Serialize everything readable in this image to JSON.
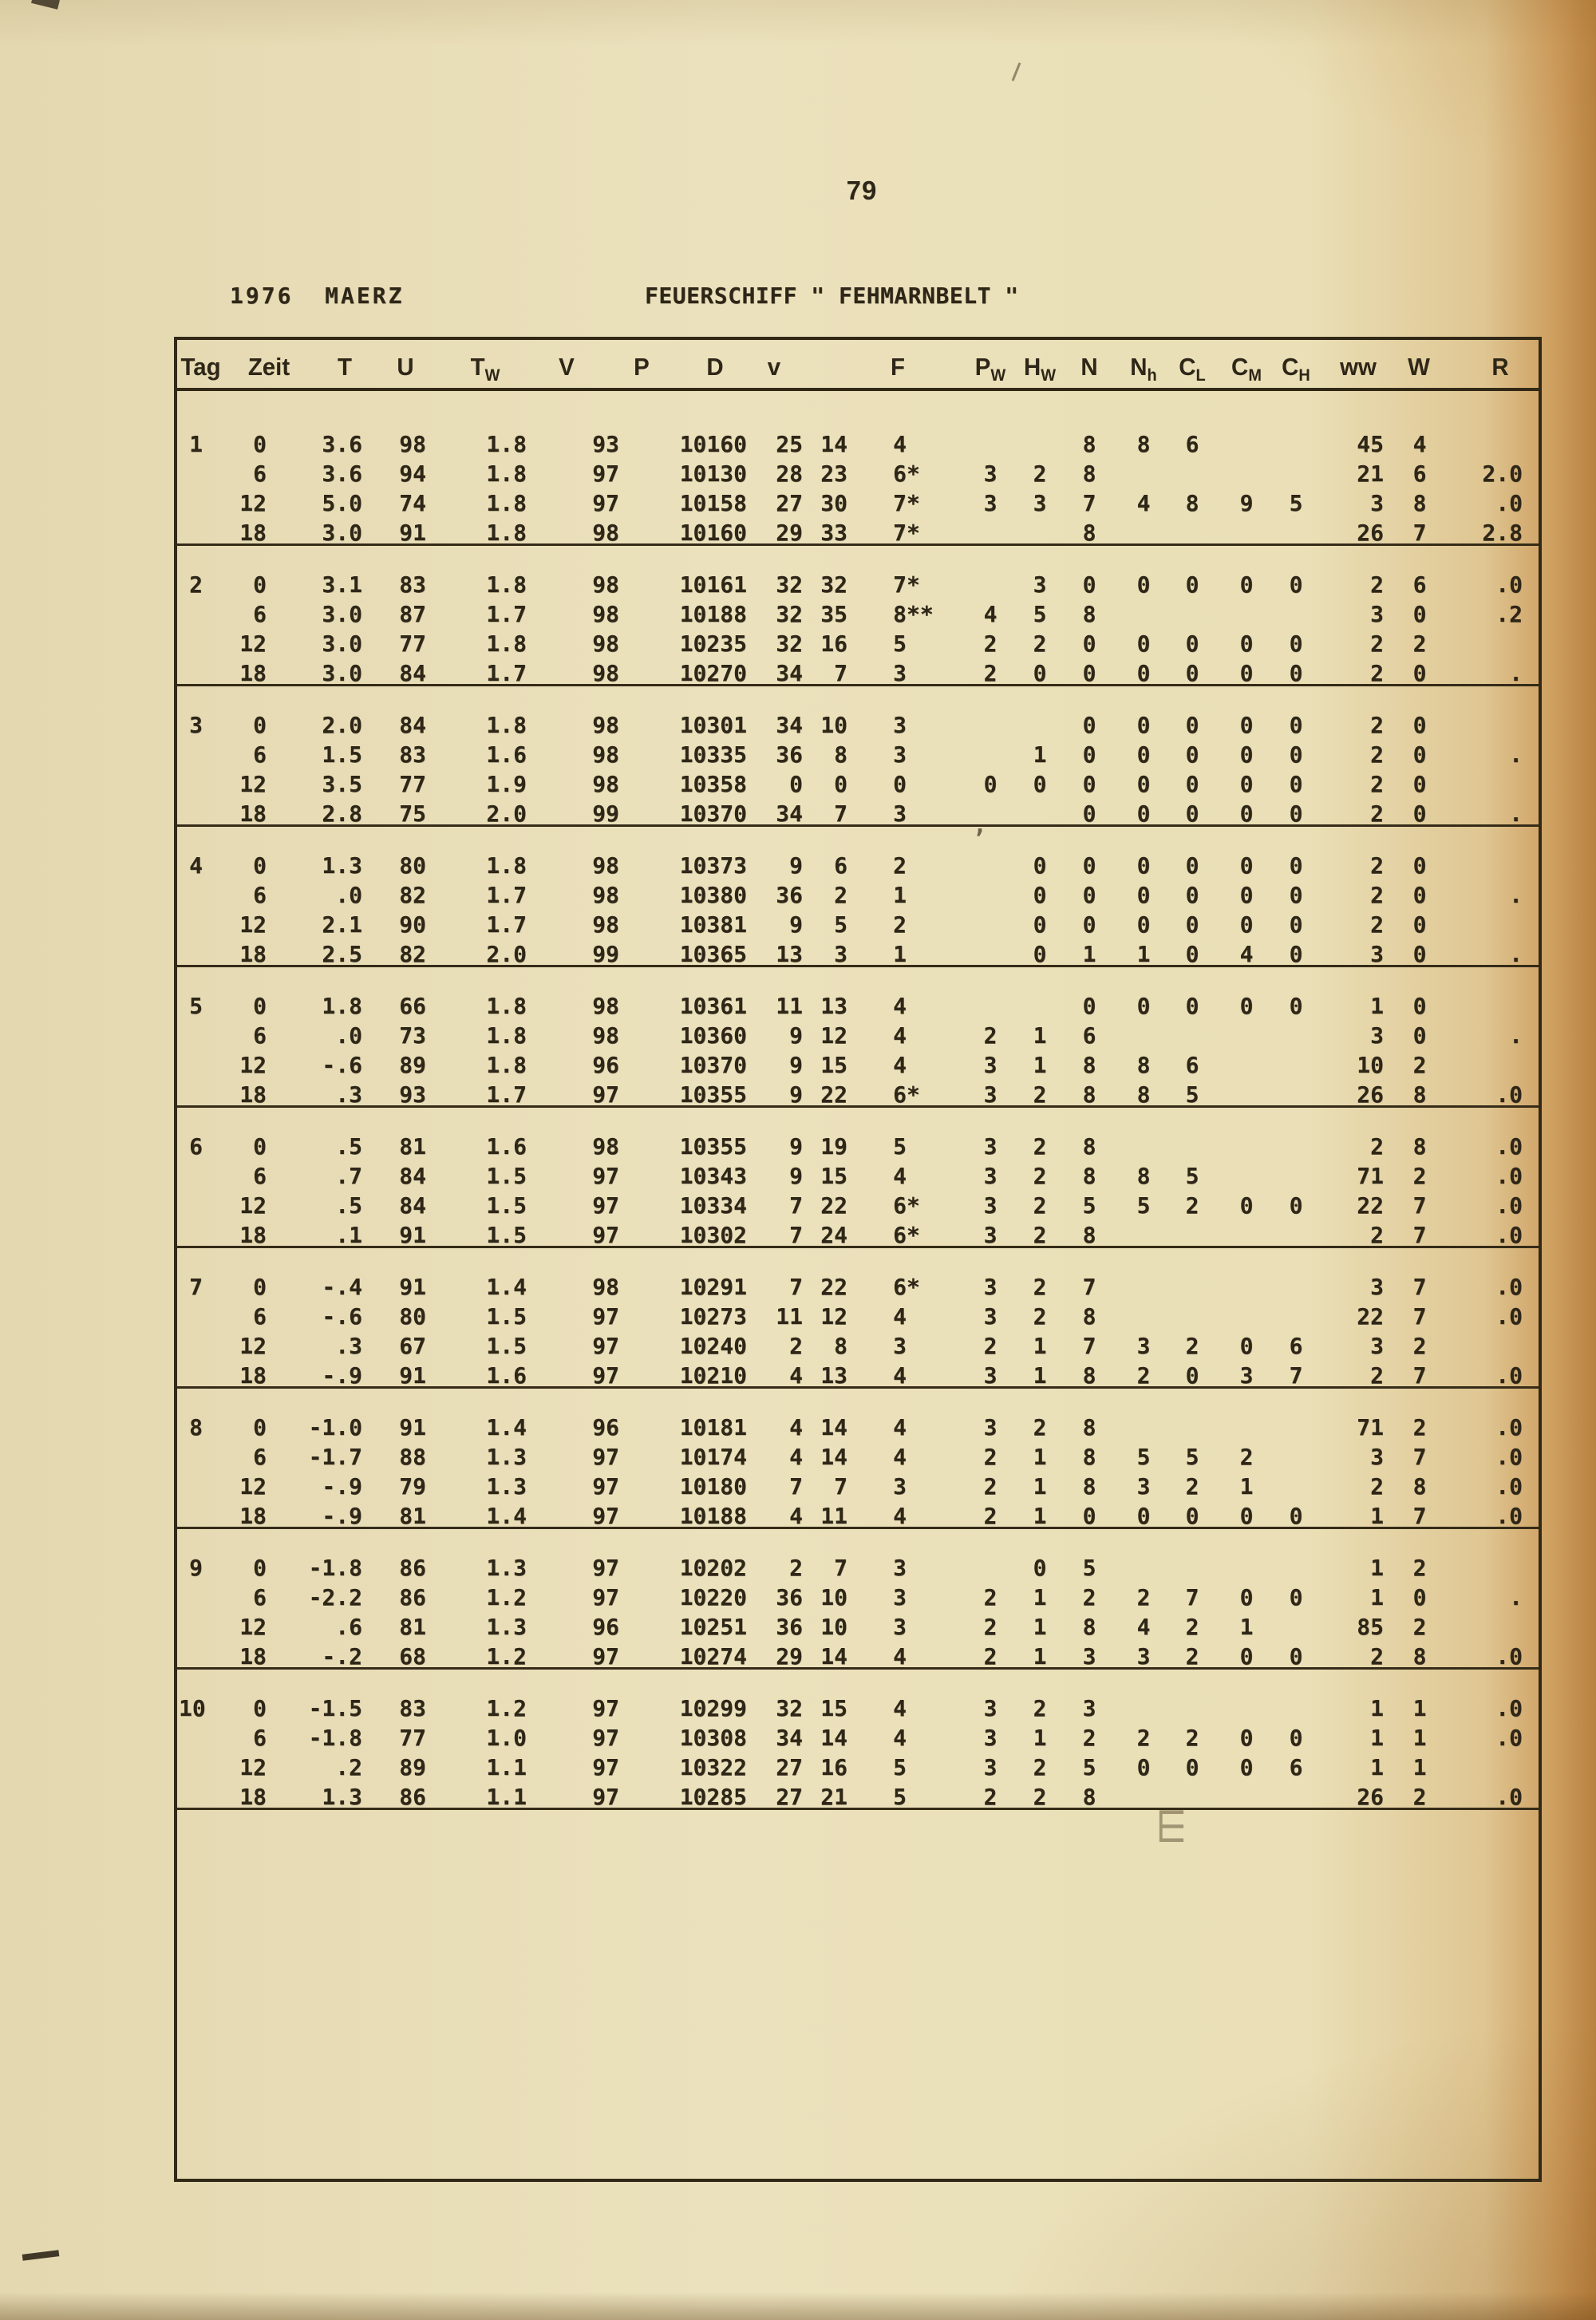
{
  "page": {
    "number": "79"
  },
  "titles": {
    "left": "1976  MAERZ",
    "right": "FEUERSCHIFF \" FEHMARNBELT \""
  },
  "table": {
    "columns": [
      {
        "key": "tag",
        "label": "Tag",
        "sub": ""
      },
      {
        "key": "zeit",
        "label": "Zeit",
        "sub": ""
      },
      {
        "key": "t",
        "label": "T",
        "sub": ""
      },
      {
        "key": "u",
        "label": "U",
        "sub": ""
      },
      {
        "key": "tw",
        "label": "T",
        "sub": "W"
      },
      {
        "key": "v",
        "label": "V",
        "sub": ""
      },
      {
        "key": "p",
        "label": "P",
        "sub": ""
      },
      {
        "key": "d",
        "label": "D",
        "sub": ""
      },
      {
        "key": "vv",
        "label": "v",
        "sub": ""
      },
      {
        "key": "f",
        "label": "F",
        "sub": ""
      },
      {
        "key": "pw",
        "label": "P",
        "sub": "W"
      },
      {
        "key": "hw",
        "label": "H",
        "sub": "W"
      },
      {
        "key": "n",
        "label": "N",
        "sub": ""
      },
      {
        "key": "nh",
        "label": "N",
        "sub": "h"
      },
      {
        "key": "cl",
        "label": "C",
        "sub": "L"
      },
      {
        "key": "cm",
        "label": "C",
        "sub": "M"
      },
      {
        "key": "ch",
        "label": "C",
        "sub": "H"
      },
      {
        "key": "ww",
        "label": "ww",
        "sub": ""
      },
      {
        "key": "w",
        "label": "W",
        "sub": ""
      },
      {
        "key": "r",
        "label": "R",
        "sub": ""
      }
    ],
    "days": [
      {
        "rows": [
          [
            "1",
            "0",
            "3.6",
            "98",
            "1.8",
            "93",
            "10160",
            "25",
            "14",
            "4",
            "",
            "",
            "8",
            "8",
            "6",
            "",
            "",
            "45",
            "4",
            ""
          ],
          [
            "",
            "6",
            "3.6",
            "94",
            "1.8",
            "97",
            "10130",
            "28",
            "23",
            "6*",
            "3",
            "2",
            "8",
            "",
            "",
            "",
            "",
            "21",
            "6",
            "2.0"
          ],
          [
            "",
            "12",
            "5.0",
            "74",
            "1.8",
            "97",
            "10158",
            "27",
            "30",
            "7*",
            "3",
            "3",
            "7",
            "4",
            "8",
            "9",
            "5",
            "3",
            "8",
            ".0"
          ],
          [
            "",
            "18",
            "3.0",
            "91",
            "1.8",
            "98",
            "10160",
            "29",
            "33",
            "7*",
            "",
            "",
            "8",
            "",
            "",
            "",
            "",
            "26",
            "7",
            "2.8"
          ]
        ]
      },
      {
        "rows": [
          [
            "2",
            "0",
            "3.1",
            "83",
            "1.8",
            "98",
            "10161",
            "32",
            "32",
            "7*",
            "",
            "3",
            "0",
            "0",
            "0",
            "0",
            "0",
            "2",
            "6",
            ".0"
          ],
          [
            "",
            "6",
            "3.0",
            "87",
            "1.7",
            "98",
            "10188",
            "32",
            "35",
            "8**",
            "4",
            "5",
            "8",
            "",
            "",
            "",
            "",
            "3",
            "0",
            ".2"
          ],
          [
            "",
            "12",
            "3.0",
            "77",
            "1.8",
            "98",
            "10235",
            "32",
            "16",
            "5",
            "2",
            "2",
            "0",
            "0",
            "0",
            "0",
            "0",
            "2",
            "2",
            ""
          ],
          [
            "",
            "18",
            "3.0",
            "84",
            "1.7",
            "98",
            "10270",
            "34",
            "7",
            "3",
            "2",
            "0",
            "0",
            "0",
            "0",
            "0",
            "0",
            "2",
            "0",
            "."
          ]
        ]
      },
      {
        "rows": [
          [
            "3",
            "0",
            "2.0",
            "84",
            "1.8",
            "98",
            "10301",
            "34",
            "10",
            "3",
            "",
            "",
            "0",
            "0",
            "0",
            "0",
            "0",
            "2",
            "0",
            ""
          ],
          [
            "",
            "6",
            "1.5",
            "83",
            "1.6",
            "98",
            "10335",
            "36",
            "8",
            "3",
            "",
            "1",
            "0",
            "0",
            "0",
            "0",
            "0",
            "2",
            "0",
            "."
          ],
          [
            "",
            "12",
            "3.5",
            "77",
            "1.9",
            "98",
            "10358",
            "0",
            "0",
            "0",
            "0",
            "0",
            "0",
            "0",
            "0",
            "0",
            "0",
            "2",
            "0",
            ""
          ],
          [
            "",
            "18",
            "2.8",
            "75",
            "2.0",
            "99",
            "10370",
            "34",
            "7",
            "3",
            "",
            "",
            "0",
            "0",
            "0",
            "0",
            "0",
            "2",
            "0",
            "."
          ]
        ]
      },
      {
        "rows": [
          [
            "4",
            "0",
            "1.3",
            "80",
            "1.8",
            "98",
            "10373",
            "9",
            "6",
            "2",
            "",
            "0",
            "0",
            "0",
            "0",
            "0",
            "0",
            "2",
            "0",
            ""
          ],
          [
            "",
            "6",
            ".0",
            "82",
            "1.7",
            "98",
            "10380",
            "36",
            "2",
            "1",
            "",
            "0",
            "0",
            "0",
            "0",
            "0",
            "0",
            "2",
            "0",
            "."
          ],
          [
            "",
            "12",
            "2.1",
            "90",
            "1.7",
            "98",
            "10381",
            "9",
            "5",
            "2",
            "",
            "0",
            "0",
            "0",
            "0",
            "0",
            "0",
            "2",
            "0",
            ""
          ],
          [
            "",
            "18",
            "2.5",
            "82",
            "2.0",
            "99",
            "10365",
            "13",
            "3",
            "1",
            "",
            "0",
            "1",
            "1",
            "0",
            "4",
            "0",
            "3",
            "0",
            "."
          ]
        ]
      },
      {
        "rows": [
          [
            "5",
            "0",
            "1.8",
            "66",
            "1.8",
            "98",
            "10361",
            "11",
            "13",
            "4",
            "",
            "",
            "0",
            "0",
            "0",
            "0",
            "0",
            "1",
            "0",
            ""
          ],
          [
            "",
            "6",
            ".0",
            "73",
            "1.8",
            "98",
            "10360",
            "9",
            "12",
            "4",
            "2",
            "1",
            "6",
            "",
            "",
            "",
            "",
            "3",
            "0",
            "."
          ],
          [
            "",
            "12",
            "-.6",
            "89",
            "1.8",
            "96",
            "10370",
            "9",
            "15",
            "4",
            "3",
            "1",
            "8",
            "8",
            "6",
            "",
            "",
            "10",
            "2",
            ""
          ],
          [
            "",
            "18",
            ".3",
            "93",
            "1.7",
            "97",
            "10355",
            "9",
            "22",
            "6*",
            "3",
            "2",
            "8",
            "8",
            "5",
            "",
            "",
            "26",
            "8",
            ".0"
          ]
        ]
      },
      {
        "rows": [
          [
            "6",
            "0",
            ".5",
            "81",
            "1.6",
            "98",
            "10355",
            "9",
            "19",
            "5",
            "3",
            "2",
            "8",
            "",
            "",
            "",
            "",
            "2",
            "8",
            ".0"
          ],
          [
            "",
            "6",
            ".7",
            "84",
            "1.5",
            "97",
            "10343",
            "9",
            "15",
            "4",
            "3",
            "2",
            "8",
            "8",
            "5",
            "",
            "",
            "71",
            "2",
            ".0"
          ],
          [
            "",
            "12",
            ".5",
            "84",
            "1.5",
            "97",
            "10334",
            "7",
            "22",
            "6*",
            "3",
            "2",
            "5",
            "5",
            "2",
            "0",
            "0",
            "22",
            "7",
            ".0"
          ],
          [
            "",
            "18",
            ".1",
            "91",
            "1.5",
            "97",
            "10302",
            "7",
            "24",
            "6*",
            "3",
            "2",
            "8",
            "",
            "",
            "",
            "",
            "2",
            "7",
            ".0"
          ]
        ]
      },
      {
        "rows": [
          [
            "7",
            "0",
            "-.4",
            "91",
            "1.4",
            "98",
            "10291",
            "7",
            "22",
            "6*",
            "3",
            "2",
            "7",
            "",
            "",
            "",
            "",
            "3",
            "7",
            ".0"
          ],
          [
            "",
            "6",
            "-.6",
            "80",
            "1.5",
            "97",
            "10273",
            "11",
            "12",
            "4",
            "3",
            "2",
            "8",
            "",
            "",
            "",
            "",
            "22",
            "7",
            ".0"
          ],
          [
            "",
            "12",
            ".3",
            "67",
            "1.5",
            "97",
            "10240",
            "2",
            "8",
            "3",
            "2",
            "1",
            "7",
            "3",
            "2",
            "0",
            "6",
            "3",
            "2",
            ""
          ],
          [
            "",
            "18",
            "-.9",
            "91",
            "1.6",
            "97",
            "10210",
            "4",
            "13",
            "4",
            "3",
            "1",
            "8",
            "2",
            "0",
            "3",
            "7",
            "2",
            "7",
            ".0"
          ]
        ]
      },
      {
        "rows": [
          [
            "8",
            "0",
            "-1.0",
            "91",
            "1.4",
            "96",
            "10181",
            "4",
            "14",
            "4",
            "3",
            "2",
            "8",
            "",
            "",
            "",
            "",
            "71",
            "2",
            ".0"
          ],
          [
            "",
            "6",
            "-1.7",
            "88",
            "1.3",
            "97",
            "10174",
            "4",
            "14",
            "4",
            "2",
            "1",
            "8",
            "5",
            "5",
            "2",
            "",
            "3",
            "7",
            ".0"
          ],
          [
            "",
            "12",
            "-.9",
            "79",
            "1.3",
            "97",
            "10180",
            "7",
            "7",
            "3",
            "2",
            "1",
            "8",
            "3",
            "2",
            "1",
            "",
            "2",
            "8",
            ".0"
          ],
          [
            "",
            "18",
            "-.9",
            "81",
            "1.4",
            "97",
            "10188",
            "4",
            "11",
            "4",
            "2",
            "1",
            "0",
            "0",
            "0",
            "0",
            "0",
            "1",
            "7",
            ".0"
          ]
        ]
      },
      {
        "rows": [
          [
            "9",
            "0",
            "-1.8",
            "86",
            "1.3",
            "97",
            "10202",
            "2",
            "7",
            "3",
            "",
            "0",
            "5",
            "",
            "",
            "",
            "",
            "1",
            "2",
            ""
          ],
          [
            "",
            "6",
            "-2.2",
            "86",
            "1.2",
            "97",
            "10220",
            "36",
            "10",
            "3",
            "2",
            "1",
            "2",
            "2",
            "7",
            "0",
            "0",
            "1",
            "0",
            "."
          ],
          [
            "",
            "12",
            ".6",
            "81",
            "1.3",
            "96",
            "10251",
            "36",
            "10",
            "3",
            "2",
            "1",
            "8",
            "4",
            "2",
            "1",
            "",
            "85",
            "2",
            ""
          ],
          [
            "",
            "18",
            "-.2",
            "68",
            "1.2",
            "97",
            "10274",
            "29",
            "14",
            "4",
            "2",
            "1",
            "3",
            "3",
            "2",
            "0",
            "0",
            "2",
            "8",
            ".0"
          ]
        ]
      },
      {
        "rows": [
          [
            "10",
            "0",
            "-1.5",
            "83",
            "1.2",
            "97",
            "10299",
            "32",
            "15",
            "4",
            "3",
            "2",
            "3",
            "",
            "",
            "",
            "",
            "1",
            "1",
            ".0"
          ],
          [
            "",
            "6",
            "-1.8",
            "77",
            "1.0",
            "97",
            "10308",
            "34",
            "14",
            "4",
            "3",
            "1",
            "2",
            "2",
            "2",
            "0",
            "0",
            "1",
            "1",
            ".0"
          ],
          [
            "",
            "12",
            ".2",
            "89",
            "1.1",
            "97",
            "10322",
            "27",
            "16",
            "5",
            "3",
            "2",
            "5",
            "0",
            "0",
            "0",
            "6",
            "1",
            "1",
            ""
          ],
          [
            "",
            "18",
            "1.3",
            "86",
            "1.1",
            "97",
            "10285",
            "27",
            "21",
            "5",
            "2",
            "2",
            "8",
            "",
            "",
            "",
            "",
            "26",
            "2",
            ".0"
          ]
        ]
      }
    ]
  }
}
